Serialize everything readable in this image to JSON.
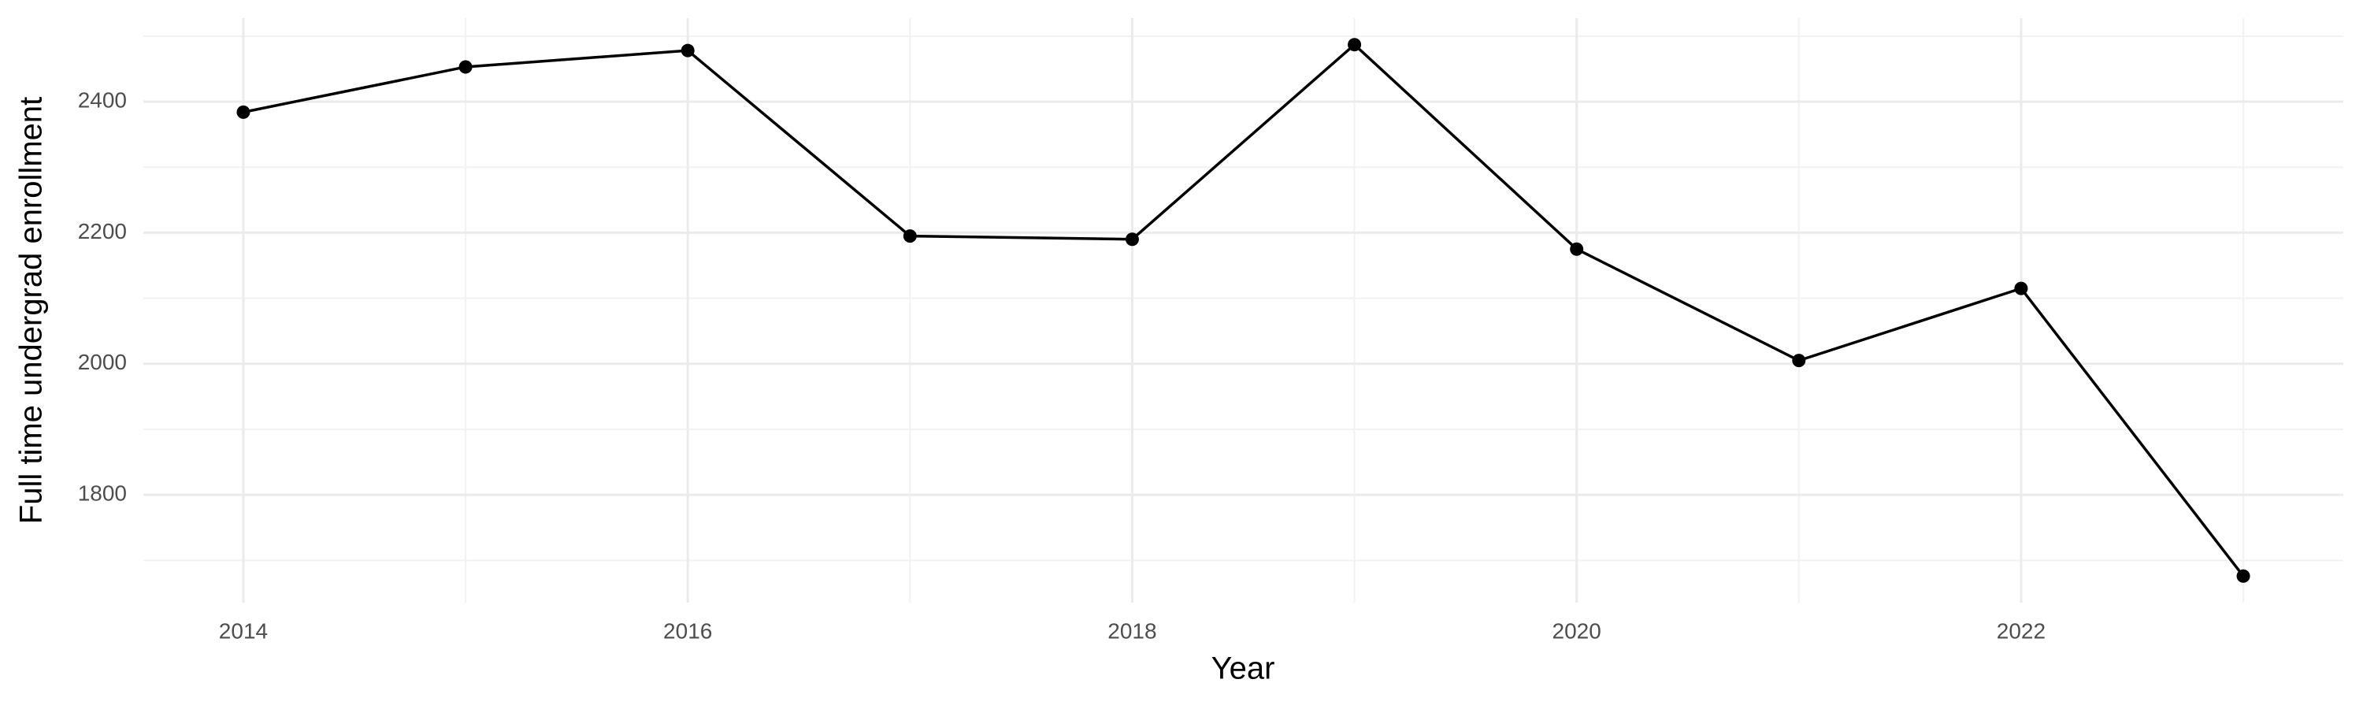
{
  "chart_data": {
    "type": "line",
    "x_label": "Year",
    "y_label": "Full time undergrad enrollment",
    "x": [
      2014,
      2015,
      2016,
      2017,
      2018,
      2019,
      2020,
      2021,
      2022,
      2023
    ],
    "values": [
      2384,
      2453,
      2478,
      2195,
      2190,
      2487,
      2175,
      2005,
      2115,
      1676
    ],
    "color": "#000000",
    "xlim": [
      2013.55,
      2023.45
    ],
    "xticks": [
      2014,
      2016,
      2018,
      2020,
      2022
    ],
    "x_minor_grid": [
      2015,
      2017,
      2019,
      2021,
      2023
    ],
    "ylim": [
      1635.5,
      2527.5
    ],
    "yticks": [
      1800,
      2000,
      2200,
      2400
    ],
    "y_minor_grid": [
      1700,
      1900,
      2100,
      2300,
      2500
    ],
    "grid": true
  }
}
